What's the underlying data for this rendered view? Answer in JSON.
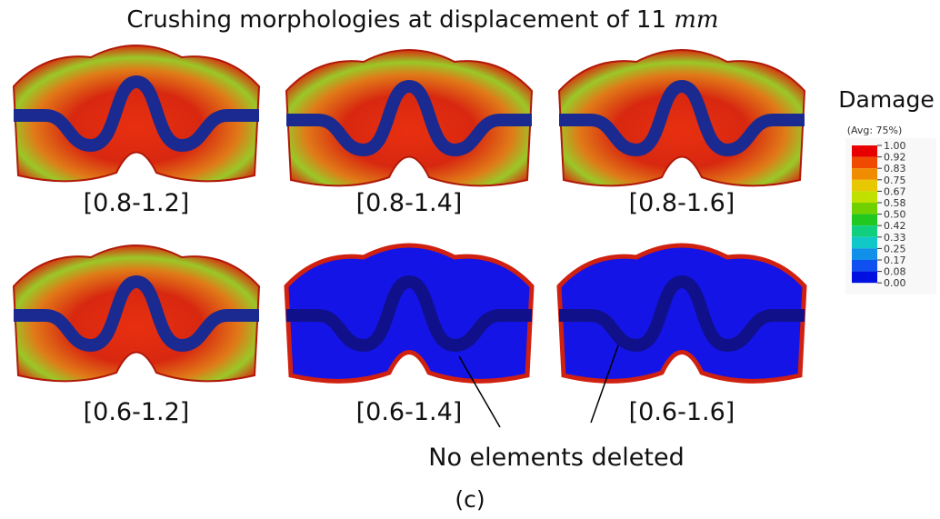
{
  "title": "Crushing morphologies at displacement of 11",
  "title_unit": "mm",
  "panels": [
    {
      "label": "[0.8-1.2]"
    },
    {
      "label": "[0.8-1.4]"
    },
    {
      "label": "[0.8-1.6]"
    },
    {
      "label": "[0.6-1.2]"
    },
    {
      "label": "[0.6-1.4]"
    },
    {
      "label": "[0.6-1.6]"
    }
  ],
  "legend": {
    "title": "Damage",
    "subtitle": "(Avg: 75%)",
    "labels": [
      "1.00",
      "0.92",
      "0.83",
      "0.75",
      "0.67",
      "0.58",
      "0.50",
      "0.42",
      "0.33",
      "0.25",
      "0.17",
      "0.08",
      "0.00"
    ]
  },
  "annotation": "No elements deleted",
  "caption": "(c)"
}
